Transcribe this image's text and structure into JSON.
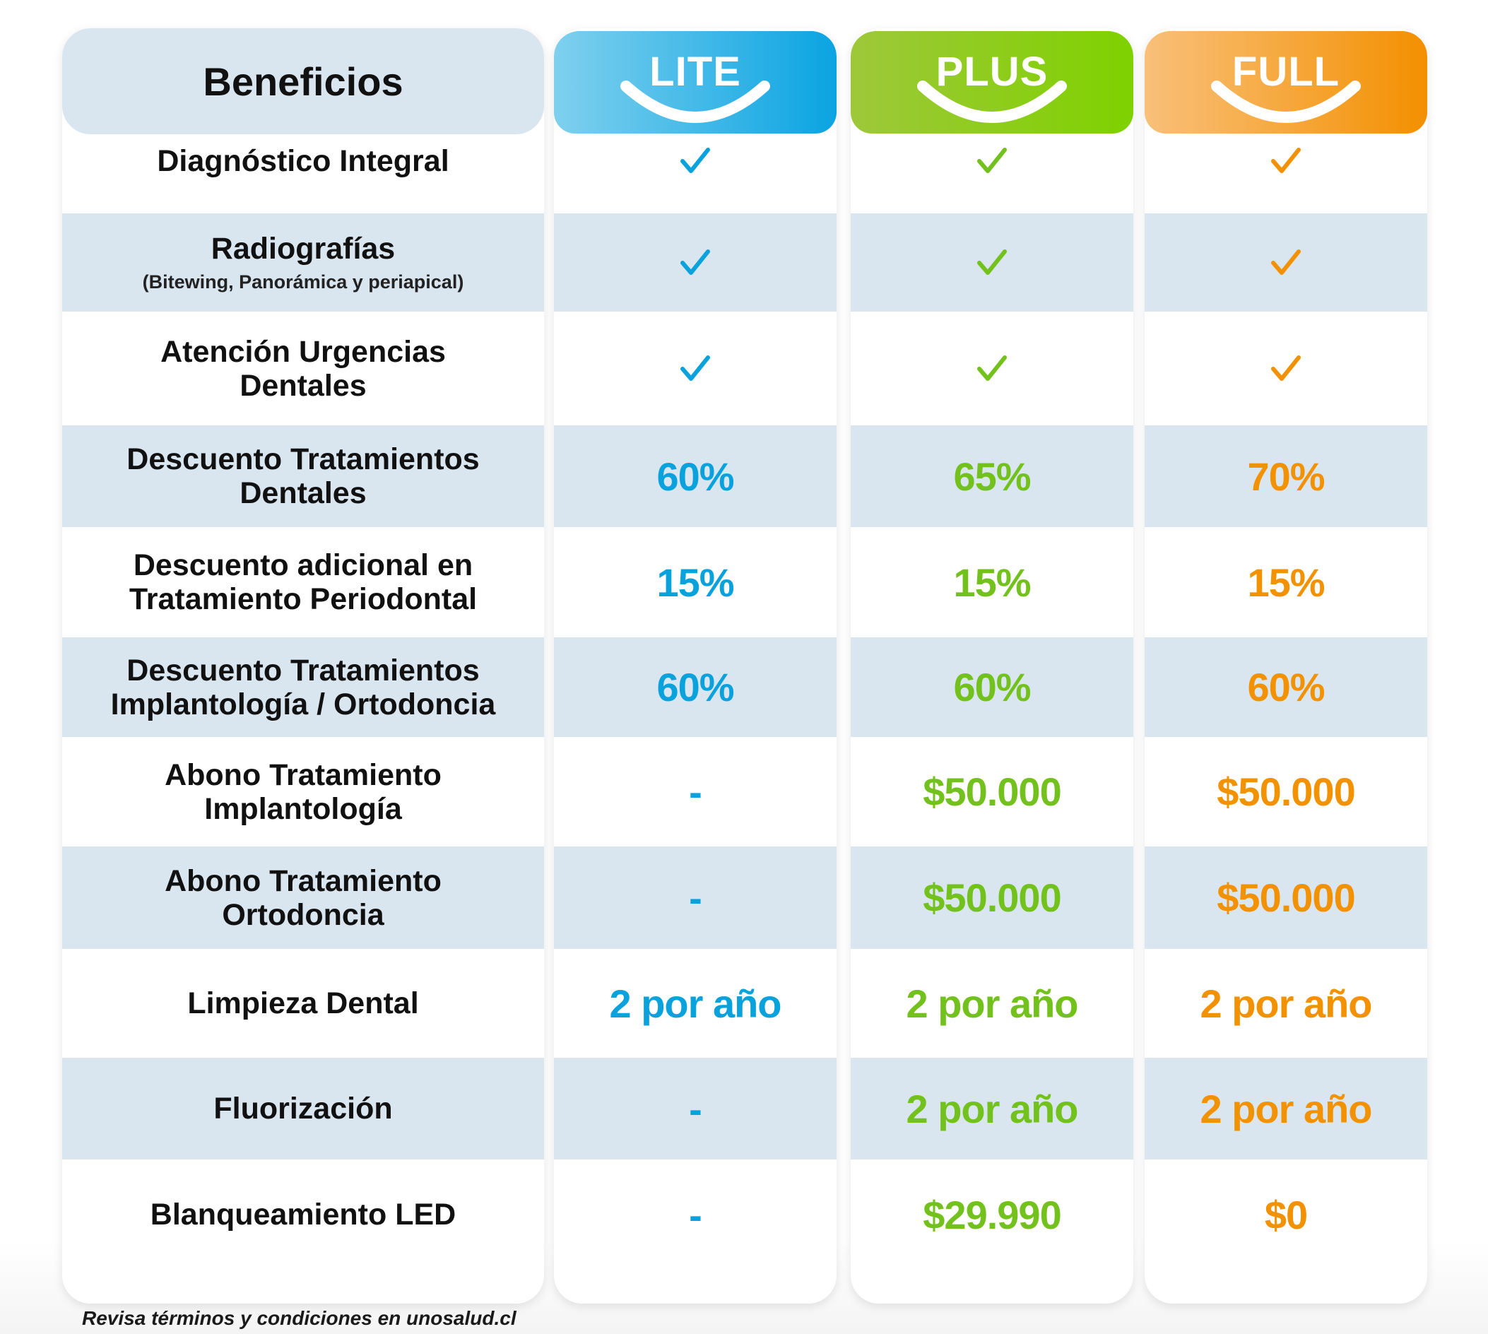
{
  "header": {
    "benefits_title": "Beneficios"
  },
  "plans": [
    {
      "key": "lite",
      "name": "LITE",
      "color": "#0aa2dd"
    },
    {
      "key": "plus",
      "name": "PLUS",
      "color": "#73c11d"
    },
    {
      "key": "full",
      "name": "FULL",
      "color": "#f39200"
    }
  ],
  "rows": [
    {
      "label": "Diagnóstico Integral",
      "sub": "",
      "lite": "✓",
      "plus": "✓",
      "full": "✓"
    },
    {
      "label": "Radiografías",
      "sub": "(Bitewing, Panorámica y periapical)",
      "lite": "✓",
      "plus": "✓",
      "full": "✓"
    },
    {
      "label": "Atención Urgencias\nDentales",
      "sub": "",
      "lite": "✓",
      "plus": "✓",
      "full": "✓"
    },
    {
      "label": "Descuento  Tratamientos\nDentales",
      "sub": "",
      "lite": "60%",
      "plus": "65%",
      "full": "70%"
    },
    {
      "label": "Descuento adicional en\nTratamiento Periodontal",
      "sub": "",
      "lite": "15%",
      "plus": "15%",
      "full": "15%"
    },
    {
      "label": "Descuento Tratamientos\nImplantología / Ortodoncia",
      "sub": "",
      "lite": "60%",
      "plus": "60%",
      "full": "60%"
    },
    {
      "label": "Abono Tratamiento\nImplantología",
      "sub": "",
      "lite": "-",
      "plus": "$50.000",
      "full": "$50.000"
    },
    {
      "label": "Abono Tratamiento\nOrtodoncia",
      "sub": "",
      "lite": "-",
      "plus": "$50.000",
      "full": "$50.000"
    },
    {
      "label": "Limpieza Dental",
      "sub": "",
      "lite": "2 por año",
      "plus": "2 por año",
      "full": "2 por año"
    },
    {
      "label": "Fluorización",
      "sub": "",
      "lite": "-",
      "plus": "2 por año",
      "full": "2 por año"
    },
    {
      "label": "Blanqueamiento LED",
      "sub": "",
      "lite": "-",
      "plus": "$29.990",
      "full": "$0"
    }
  ],
  "footnote": "Revisa términos y condiciones en unosalud.cl"
}
